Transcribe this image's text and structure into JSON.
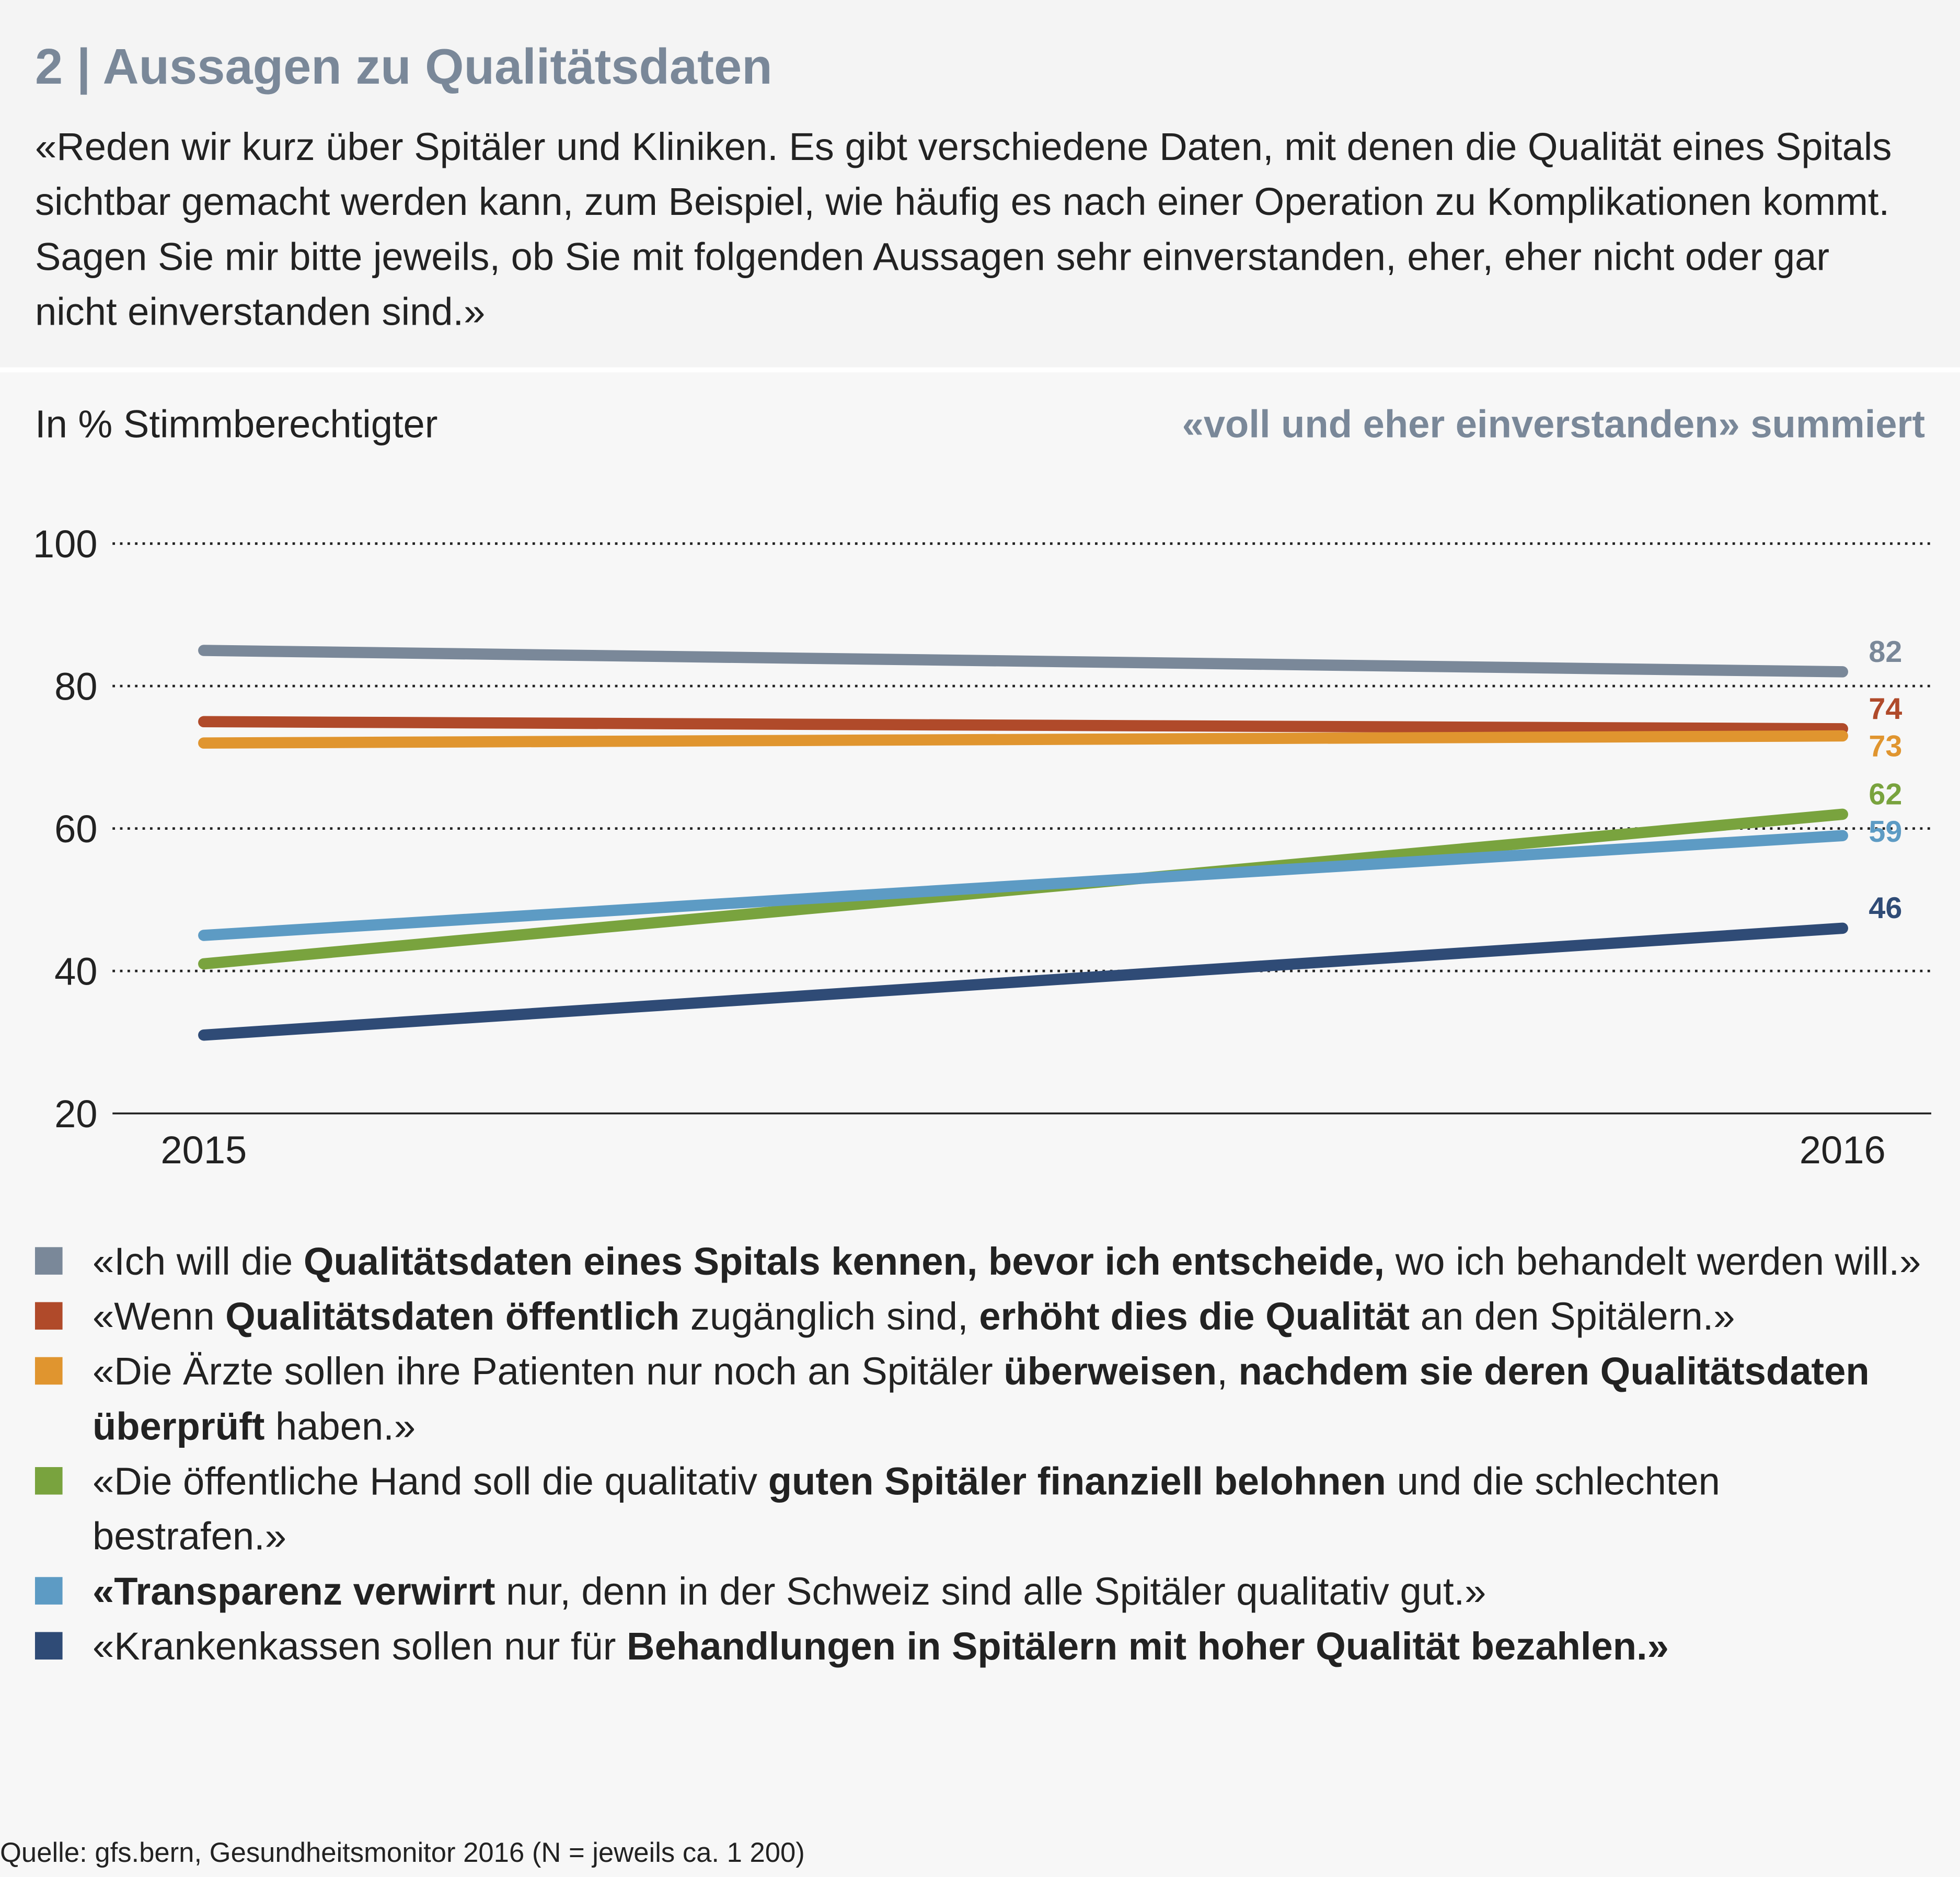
{
  "header": {
    "title": "2 | Aussagen zu Qualitätsdaten",
    "intro": "«Reden wir kurz über Spitäler und Kliniken. Es gibt verschiedene Daten, mit denen die Qualität eines Spitals sichtbar gemacht werden kann, zum Beispiel, wie häufig es nach einer Operation zu Komplikationen kommt. Sagen Sie mir bitte jeweils, ob Sie mit folgenden Aussagen sehr einverstanden, eher, eher nicht oder gar nicht einverstanden sind.»"
  },
  "chart_data": {
    "type": "line",
    "unit_label": "In % Stimmberechtigter",
    "note": "«voll und eher einverstanden» summiert",
    "categories": [
      "2015",
      "2016"
    ],
    "ylim": [
      20,
      100
    ],
    "yticks": [
      20,
      40,
      60,
      80,
      100
    ],
    "grid": true,
    "series": [
      {
        "color": "#7a8899",
        "values": [
          85,
          82
        ],
        "legend_segments": [
          {
            "text": "«Ich will die ",
            "bold": false
          },
          {
            "text": "Qualitätsdaten eines Spitals kennen, bevor ich entscheide,",
            "bold": true
          },
          {
            "text": " wo ich behandelt werden will.»",
            "bold": false
          }
        ]
      },
      {
        "color": "#b04a2a",
        "values": [
          75,
          74
        ],
        "legend_segments": [
          {
            "text": "«Wenn ",
            "bold": false
          },
          {
            "text": "Qualitätsdaten öffentlich",
            "bold": true
          },
          {
            "text": " zugänglich sind, ",
            "bold": false
          },
          {
            "text": "erhöht dies die Qualität",
            "bold": true
          },
          {
            "text": " an den Spitälern.»",
            "bold": false
          }
        ]
      },
      {
        "color": "#e0952f",
        "values": [
          72,
          73
        ],
        "legend_segments": [
          {
            "text": "«Die Ärzte sollen ihre Patienten nur noch an Spitäler ",
            "bold": false
          },
          {
            "text": "überweisen",
            "bold": true
          },
          {
            "text": ", ",
            "bold": false
          },
          {
            "text": "nachdem sie deren Qualitätsdaten überprüft",
            "bold": true
          },
          {
            "text": " haben.»",
            "bold": false
          }
        ]
      },
      {
        "color": "#79a33e",
        "values": [
          41,
          62
        ],
        "legend_segments": [
          {
            "text": "«Die öffentliche Hand soll die qualitativ ",
            "bold": false
          },
          {
            "text": "guten Spitäler finanziell belohnen",
            "bold": true
          },
          {
            "text": " und die schlechten bestrafen.»",
            "bold": false
          }
        ]
      },
      {
        "color": "#5d9bc4",
        "values": [
          45,
          59
        ],
        "legend_segments": [
          {
            "text": "«Transparenz verwirrt",
            "bold": true
          },
          {
            "text": " nur, denn in der Schweiz sind alle Spitäler qualitativ gut.»",
            "bold": false
          }
        ]
      },
      {
        "color": "#2f4b76",
        "values": [
          31,
          46
        ],
        "legend_segments": [
          {
            "text": "«Krankenkassen sollen nur für ",
            "bold": false
          },
          {
            "text": "Behandlungen in Spitälern mit hoher Qualität bezahlen.»",
            "bold": true
          }
        ]
      }
    ]
  },
  "source": "Quelle: gfs.bern, Gesundheitsmonitor 2016 (N = jeweils ca. 1 200)"
}
